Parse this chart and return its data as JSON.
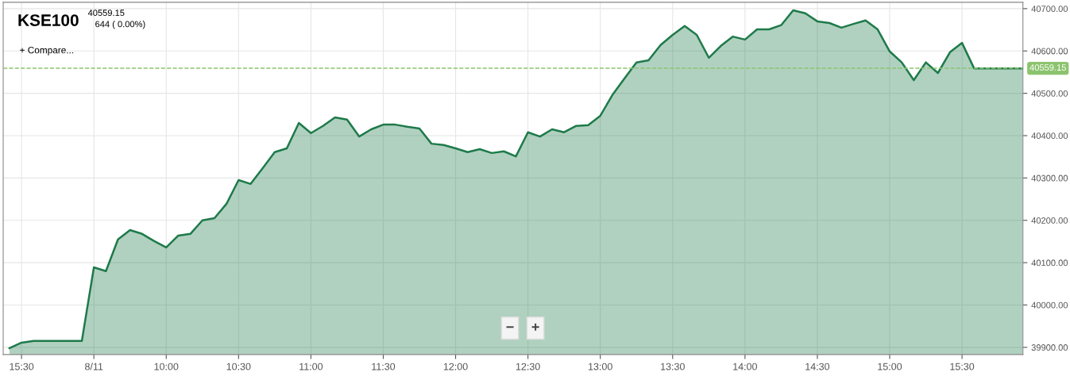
{
  "chart_data": {
    "type": "area",
    "title": "KSE100",
    "subtitle": "40559.15",
    "annotations": [
      "644 ( 0.00%)",
      "+ Compare...",
      "−",
      "+"
    ],
    "categories": [
      null,
      "15:30",
      null,
      null,
      null,
      null,
      null,
      "8/11",
      null,
      null,
      null,
      null,
      null,
      "10:00",
      null,
      null,
      null,
      null,
      null,
      "10:30",
      null,
      null,
      null,
      null,
      null,
      "11:00",
      null,
      null,
      null,
      null,
      null,
      "11:30",
      null,
      null,
      null,
      null,
      null,
      "12:00",
      null,
      null,
      null,
      null,
      null,
      "12:30",
      null,
      null,
      null,
      null,
      null,
      "13:00",
      null,
      null,
      null,
      null,
      null,
      "13:30",
      null,
      null,
      null,
      null,
      null,
      "14:00",
      null,
      null,
      null,
      null,
      null,
      "14:30",
      null,
      null,
      null,
      null,
      null,
      "15:00",
      null,
      null,
      null,
      null,
      null,
      "15:30",
      null,
      null,
      null,
      null,
      null
    ],
    "series": [
      {
        "color": "#1e7a4a",
        "values": [
          39898,
          39911,
          39915,
          39915,
          39915,
          39915,
          39915,
          40089,
          40080,
          40155,
          40177,
          40168,
          40151,
          40136,
          40164,
          40168,
          40200,
          40205,
          40239,
          40295,
          40286,
          40323,
          40361,
          40370,
          40430,
          40406,
          40423,
          40443,
          40438,
          40398,
          40415,
          40426,
          40426,
          40421,
          40417,
          40381,
          40378,
          40370,
          40361,
          40368,
          40359,
          40363,
          40351,
          40408,
          40398,
          40415,
          40408,
          40423,
          40425,
          40447,
          40496,
          40535,
          40573,
          40578,
          40614,
          40638,
          40659,
          40638,
          40584,
          40612,
          40634,
          40627,
          40651,
          40651,
          40661,
          40696,
          40689,
          40670,
          40666,
          40655,
          40664,
          40672,
          40651,
          40599,
          40573,
          40531,
          40573,
          40548,
          40597,
          40619,
          40559,
          40559,
          40559,
          40559,
          40559
        ]
      }
    ],
    "ylim": [
      39883,
      40715
    ],
    "yticks": [
      {
        "value": 39900,
        "label": "39900.00"
      },
      {
        "value": 40000,
        "label": "40000.00"
      },
      {
        "value": 40100,
        "label": "40100.00"
      },
      {
        "value": 40200,
        "label": "40200.00"
      },
      {
        "value": 40300,
        "label": "40300.00"
      },
      {
        "value": 40400,
        "label": "40400.00"
      },
      {
        "value": 40500,
        "label": "40500.00"
      },
      {
        "value": 40600,
        "label": "40600.00"
      },
      {
        "value": 40700,
        "label": "40700.00"
      }
    ],
    "ref_lines": [
      {
        "axis": "y",
        "value": 40559.15,
        "label": "40559.15",
        "color": "#8cc46e",
        "line_style": "dashed"
      }
    ],
    "grid": true,
    "legend": false
  }
}
